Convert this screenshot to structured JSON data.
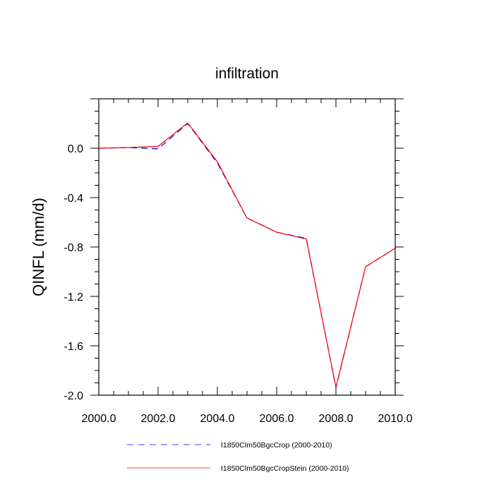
{
  "chart_data": {
    "type": "line",
    "title": "infiltration",
    "xlabel": "",
    "ylabel": "QINFL  (mm/d)",
    "xlim": [
      2000.0,
      2010.0
    ],
    "ylim": [
      -2.0,
      0.4
    ],
    "x_ticks": [
      2000.0,
      2002.0,
      2004.0,
      2006.0,
      2008.0,
      2010.0
    ],
    "x_tick_labels": [
      "2000.0",
      "2002.0",
      "2004.0",
      "2006.0",
      "2008.0",
      "2010.0"
    ],
    "y_ticks": [
      0.0,
      -0.4,
      -0.8,
      -1.2,
      -1.6,
      -2.0
    ],
    "y_tick_labels": [
      "0.0",
      "-0.4",
      "-0.8",
      "-1.2",
      "-1.6",
      "-2.0"
    ],
    "grid": false,
    "legend_position": "bottom",
    "x": [
      2000,
      2001,
      2002,
      2003,
      2004,
      2005,
      2006,
      2007,
      2008,
      2009,
      2010
    ],
    "series": [
      {
        "name": "I1850Clm50BgcCrop (2000-2010)",
        "color": "#0000ff",
        "dash": "dashed",
        "values": [
          0.0,
          0.005,
          -0.005,
          0.2,
          -0.12,
          -0.565,
          -0.68,
          -0.73,
          -1.94,
          -0.96,
          -0.81
        ]
      },
      {
        "name": "I1850Clm50BgcCropStein (2000-2010)",
        "color": "#ff0000",
        "dash": "solid",
        "values": [
          0.0,
          0.005,
          0.015,
          0.205,
          -0.11,
          -0.565,
          -0.68,
          -0.735,
          -1.935,
          -0.96,
          -0.81
        ]
      }
    ]
  }
}
